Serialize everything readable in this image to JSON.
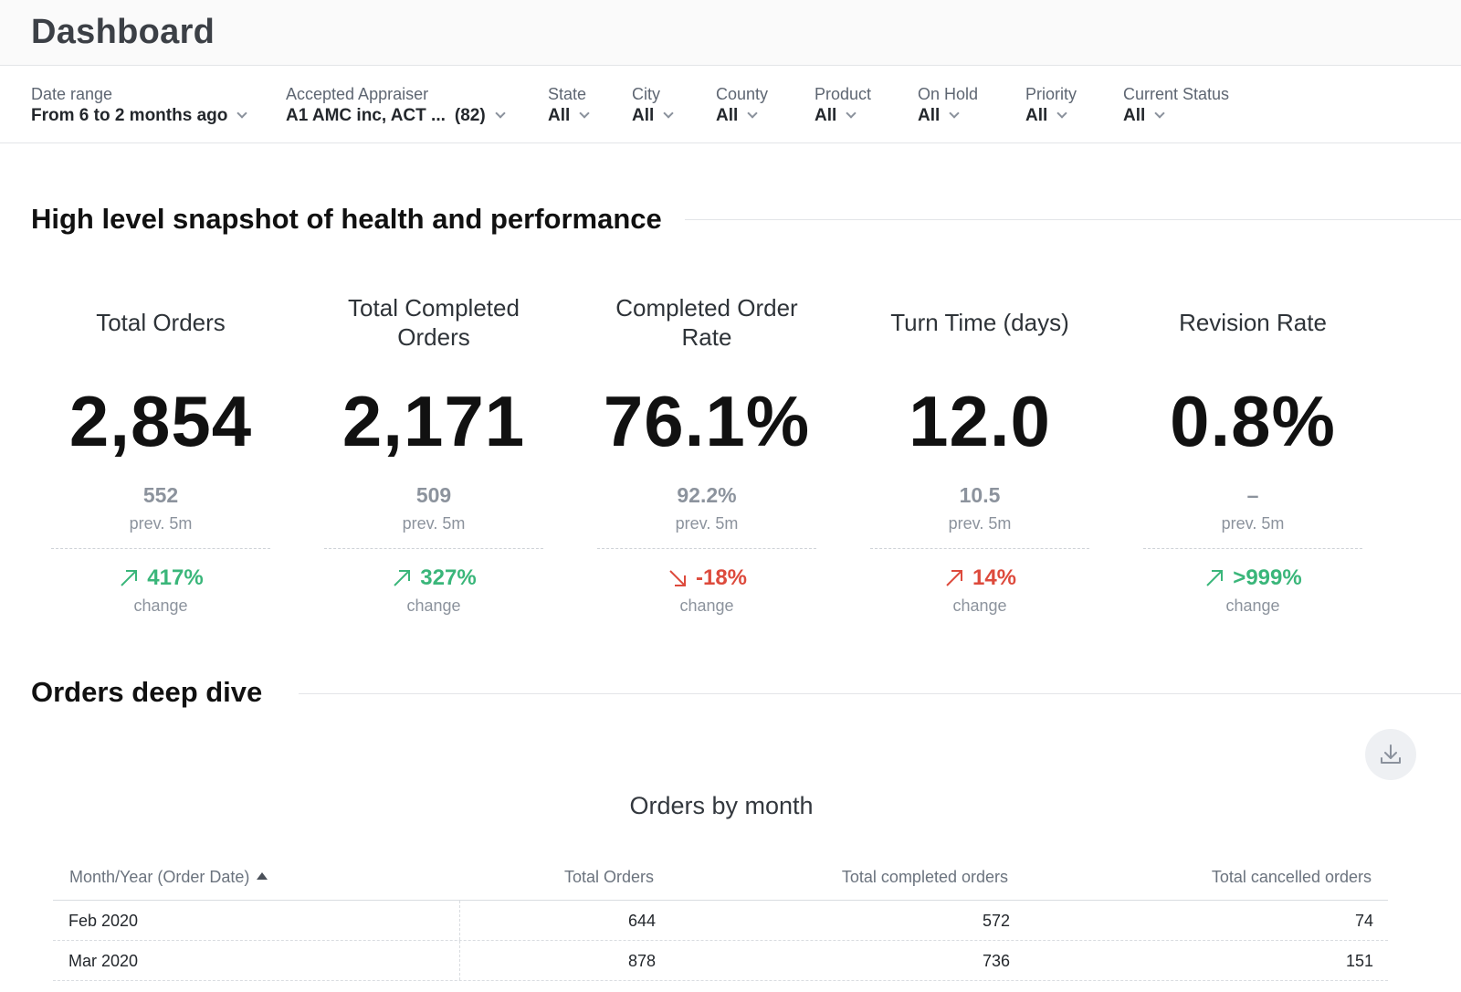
{
  "header": {
    "title": "Dashboard"
  },
  "filters": [
    {
      "label": "Date range",
      "value": "From 6 to 2 months ago"
    },
    {
      "label": "Accepted Appraiser",
      "value": "A1 AMC inc, ACT ...",
      "count": "(82)"
    },
    {
      "label": "State",
      "value": "All"
    },
    {
      "label": "City",
      "value": "All"
    },
    {
      "label": "County",
      "value": "All"
    },
    {
      "label": "Product",
      "value": "All"
    },
    {
      "label": "On Hold",
      "value": "All"
    },
    {
      "label": "Priority",
      "value": "All"
    },
    {
      "label": "Current Status",
      "value": "All"
    }
  ],
  "snapshot": {
    "title": "High level snapshot of health and performance",
    "kpis": [
      {
        "title": "Total Orders",
        "value": "2,854",
        "prev": "552",
        "prev_label": "prev. 5m",
        "change": "417%",
        "change_label": "change",
        "direction": "up",
        "sentiment": "good"
      },
      {
        "title": "Total Completed Orders",
        "value": "2,171",
        "prev": "509",
        "prev_label": "prev. 5m",
        "change": "327%",
        "change_label": "change",
        "direction": "up",
        "sentiment": "good"
      },
      {
        "title": "Completed Order Rate",
        "value": "76.1%",
        "prev": "92.2%",
        "prev_label": "prev. 5m",
        "change": "-18%",
        "change_label": "change",
        "direction": "down",
        "sentiment": "bad"
      },
      {
        "title": "Turn Time (days)",
        "value": "12.0",
        "prev": "10.5",
        "prev_label": "prev. 5m",
        "change": "14%",
        "change_label": "change",
        "direction": "up",
        "sentiment": "bad"
      },
      {
        "title": "Revision Rate",
        "value": "0.8%",
        "prev": "–",
        "prev_label": "prev. 5m",
        "change": ">999%",
        "change_label": "change",
        "direction": "up",
        "sentiment": "good"
      }
    ]
  },
  "deep_dive": {
    "title": "Orders deep dive",
    "table_title": "Orders by month",
    "columns": [
      "Month/Year (Order Date)",
      "Total Orders",
      "Total completed orders",
      "Total cancelled orders"
    ],
    "rows": [
      [
        "Feb 2020",
        "644",
        "572",
        "74"
      ],
      [
        "Mar 2020",
        "878",
        "736",
        "151"
      ]
    ]
  },
  "colors": {
    "positive": "#3ab67a",
    "negative": "#dd4a3c",
    "muted": "#8c939d"
  },
  "icons": {
    "download": "download-icon",
    "sort": "sort-ascending-icon",
    "dropdown": "chevron-down-icon"
  }
}
